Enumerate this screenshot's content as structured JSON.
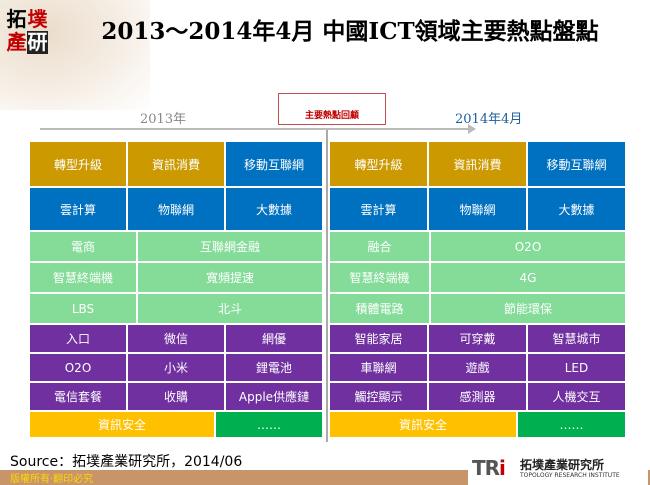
{
  "logo": {
    "chars": [
      "拓",
      "墣",
      "產",
      "研"
    ]
  },
  "title": "2013～2014年4月 中國ICT領域主要熱點盤點",
  "timeline": {
    "left_label": "2013年",
    "center_label": "主要熱點回顧",
    "right_label": "2014年4月"
  },
  "panels": [
    {
      "rows": [
        {
          "cells": [
            {
              "label": "轉型升級",
              "color": "gold"
            },
            {
              "label": "資訊消費",
              "color": "gold"
            },
            {
              "label": "移動互聯網",
              "color": "blue"
            }
          ]
        },
        {
          "cells": [
            {
              "label": "雲計算",
              "color": "blue"
            },
            {
              "label": "物聯網",
              "color": "blue"
            },
            {
              "label": "大數據",
              "color": "blue"
            }
          ]
        },
        {
          "cells": [
            {
              "label": "電商",
              "color": "lgreen"
            },
            {
              "label": "互聯網金融",
              "color": "lgreen"
            }
          ]
        },
        {
          "cells": [
            {
              "label": "智慧終端機",
              "color": "lgreen"
            },
            {
              "label": "寬頻提速",
              "color": "lgreen"
            }
          ]
        },
        {
          "cells": [
            {
              "label": "LBS",
              "color": "lgreen"
            },
            {
              "label": "北斗",
              "color": "lgreen"
            }
          ]
        },
        {
          "cells": [
            {
              "label": "入口",
              "color": "purple"
            },
            {
              "label": "微信",
              "color": "purple"
            },
            {
              "label": "網優",
              "color": "purple"
            }
          ]
        },
        {
          "cells": [
            {
              "label": "O2O",
              "color": "purple"
            },
            {
              "label": "小米",
              "color": "purple"
            },
            {
              "label": "鋰電池",
              "color": "purple"
            }
          ]
        },
        {
          "cells": [
            {
              "label": "電信套餐",
              "color": "purple"
            },
            {
              "label": "收購",
              "color": "purple"
            },
            {
              "label": "Apple供應鏈",
              "color": "purple"
            }
          ]
        },
        {
          "cells": [
            {
              "label": "資訊安全",
              "color": "ygold"
            },
            {
              "label": "……",
              "color": "green"
            }
          ]
        }
      ]
    },
    {
      "rows": [
        {
          "cells": [
            {
              "label": "轉型升級",
              "color": "gold"
            },
            {
              "label": "資訊消費",
              "color": "gold"
            },
            {
              "label": "移動互聯網",
              "color": "blue"
            }
          ]
        },
        {
          "cells": [
            {
              "label": "雲計算",
              "color": "blue"
            },
            {
              "label": "物聯網",
              "color": "blue"
            },
            {
              "label": "大數據",
              "color": "blue"
            }
          ]
        },
        {
          "cells": [
            {
              "label": "融合",
              "color": "lgreen"
            },
            {
              "label": "O2O",
              "color": "lgreen"
            }
          ]
        },
        {
          "cells": [
            {
              "label": "智慧終端機",
              "color": "lgreen"
            },
            {
              "label": "4G",
              "color": "lgreen"
            }
          ]
        },
        {
          "cells": [
            {
              "label": "積體電路",
              "color": "lgreen"
            },
            {
              "label": "節能環保",
              "color": "lgreen"
            }
          ]
        },
        {
          "cells": [
            {
              "label": "智能家居",
              "color": "purple"
            },
            {
              "label": "可穿戴",
              "color": "purple"
            },
            {
              "label": "智慧城市",
              "color": "purple"
            }
          ]
        },
        {
          "cells": [
            {
              "label": "車聯網",
              "color": "purple"
            },
            {
              "label": "遊戲",
              "color": "purple"
            },
            {
              "label": "LED",
              "color": "purple"
            }
          ]
        },
        {
          "cells": [
            {
              "label": "觸控顯示",
              "color": "purple"
            },
            {
              "label": "感測器",
              "color": "purple"
            },
            {
              "label": "人機交互",
              "color": "purple"
            }
          ]
        },
        {
          "cells": [
            {
              "label": "資訊安全",
              "color": "ygold"
            },
            {
              "label": "……",
              "color": "green"
            }
          ]
        }
      ]
    }
  ],
  "source": "Source：拓墣產業研究所，2014/06",
  "footer": "版權所有‧翻印必究",
  "tri_logo": {
    "mark": "TRi",
    "cn": "拓墣產業研究所",
    "en": "TOPOLOGY RESEARCH INSTITUTE"
  },
  "colors": {
    "gold": "#cc9900",
    "blue": "#0070c0",
    "lgreen": "#84dc98",
    "purple": "#7030a0",
    "ygold": "#ffc000",
    "green": "#00b050",
    "accent_red": "#c00000"
  }
}
